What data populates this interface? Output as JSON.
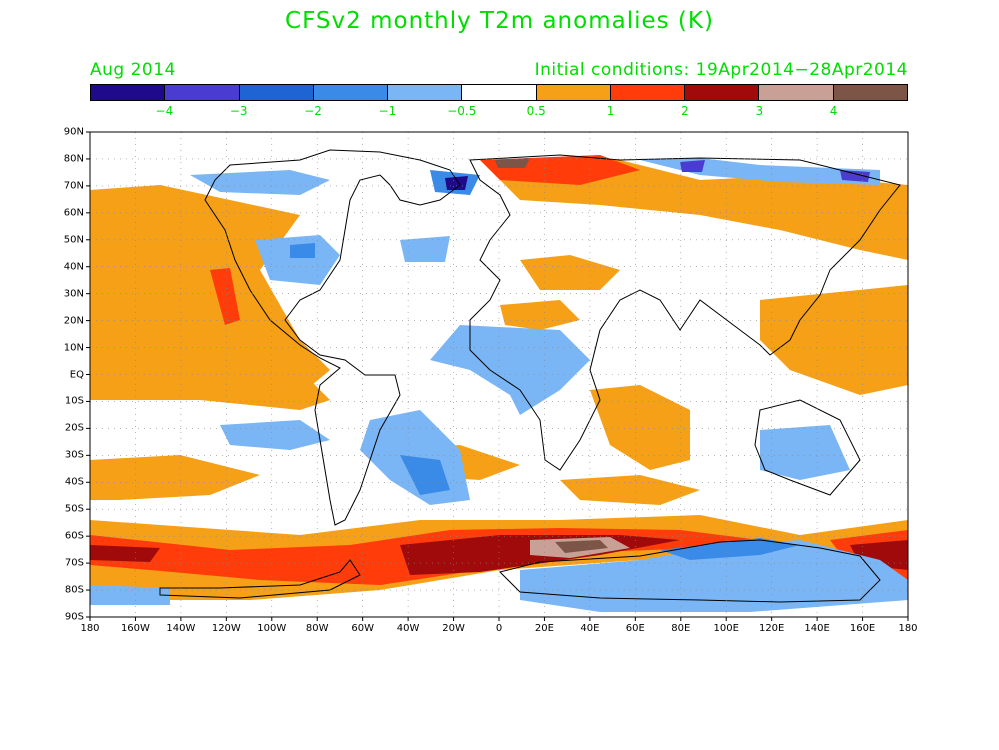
{
  "title": "CFSv2 monthly T2m anomalies (K)",
  "valid_month": "Aug 2014",
  "initial_conditions": "Initial conditions: 19Apr2014−28Apr2014",
  "colorbar": {
    "colors": [
      "#1f0a8c",
      "#4a3bd1",
      "#1e64d2",
      "#3a8ae8",
      "#7ab6f5",
      "#ffffff",
      "#f5a017",
      "#ff3c0a",
      "#a00a0a",
      "#c8a096",
      "#7d5546"
    ],
    "labels": [
      "−4",
      "−3",
      "−2",
      "−1",
      "−0.5",
      "0.5",
      "1",
      "2",
      "3",
      "4"
    ]
  },
  "axes": {
    "lat_labels": [
      "90N",
      "80N",
      "70N",
      "60N",
      "50N",
      "40N",
      "30N",
      "20N",
      "10N",
      "EQ",
      "10S",
      "20S",
      "30S",
      "40S",
      "50S",
      "60S",
      "70S",
      "80S",
      "90S"
    ],
    "lon_labels": [
      "180",
      "160W",
      "140W",
      "120W",
      "100W",
      "80W",
      "60W",
      "40W",
      "20W",
      "0",
      "20E",
      "40E",
      "60E",
      "80E",
      "100E",
      "120E",
      "140E",
      "160E",
      "180"
    ]
  }
}
